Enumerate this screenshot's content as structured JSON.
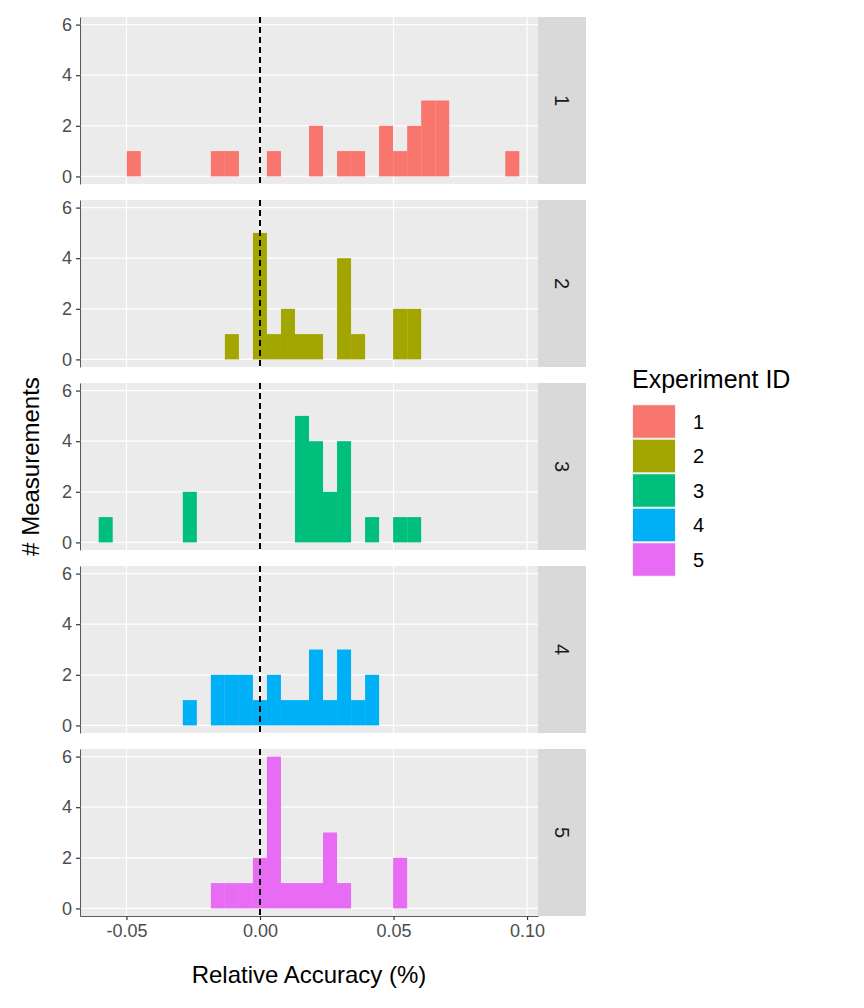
{
  "chart_data": {
    "type": "histogram",
    "x_label": "Relative Accuracy (%)",
    "y_label": "# Measurements",
    "legend_title": "Experiment ID",
    "legend": "right",
    "grid": true,
    "bins": [
      -0.0604,
      -0.05515,
      -0.0499,
      -0.04465,
      -0.0394,
      -0.03415,
      -0.0289,
      -0.02365,
      -0.0184,
      -0.01315,
      -0.0079,
      -0.00265,
      0.0026,
      0.00785,
      0.0131,
      0.01835,
      0.0236,
      0.02885,
      0.0341,
      0.03935,
      0.0446,
      0.04985,
      0.0551,
      0.06035,
      0.0656,
      0.07085,
      0.0761,
      0.08135,
      0.0866,
      0.09185,
      0.0971
    ],
    "series": [
      {
        "name": "1",
        "color": "#F8766D",
        "values": [
          0,
          0,
          1,
          0,
          0,
          0,
          0,
          0,
          1,
          1,
          0,
          0,
          1,
          0,
          0,
          2,
          0,
          1,
          1,
          0,
          2,
          1,
          2,
          3,
          3,
          0,
          0,
          0,
          0,
          1
        ]
      },
      {
        "name": "2",
        "color": "#A3A500",
        "values": [
          0,
          0,
          0,
          0,
          0,
          0,
          0,
          0,
          0,
          1,
          0,
          5,
          1,
          2,
          1,
          1,
          0,
          4,
          1,
          0,
          0,
          2,
          2,
          0,
          0,
          0,
          0,
          0,
          0,
          0
        ]
      },
      {
        "name": "3",
        "color": "#00BF7D",
        "values": [
          1,
          0,
          0,
          0,
          0,
          0,
          2,
          0,
          0,
          0,
          0,
          0,
          0,
          0,
          5,
          4,
          2,
          4,
          0,
          1,
          0,
          1,
          1,
          0,
          0,
          0,
          0,
          0,
          0,
          0
        ]
      },
      {
        "name": "4",
        "color": "#00B0F6",
        "values": [
          0,
          0,
          0,
          0,
          0,
          0,
          1,
          0,
          2,
          2,
          2,
          1,
          2,
          1,
          1,
          3,
          1,
          3,
          1,
          2,
          0,
          0,
          0,
          0,
          0,
          0,
          0,
          0,
          0,
          0
        ]
      },
      {
        "name": "5",
        "color": "#E76BF3",
        "values": [
          0,
          0,
          0,
          0,
          0,
          0,
          0,
          0,
          1,
          1,
          1,
          2,
          6,
          1,
          1,
          1,
          3,
          1,
          0,
          0,
          0,
          2,
          0,
          0,
          0,
          0,
          0,
          0,
          0,
          0
        ]
      }
    ],
    "reference_line": {
      "x": 0,
      "line_style": "dashed"
    },
    "xlim": [
      -0.0674,
      0.1041
    ],
    "ylim": [
      -0.3,
      6.3
    ],
    "xticks": [
      -0.05,
      {
        "value": 0,
        "label": "0.00"
      },
      0.05,
      {
        "value": 0.1,
        "label": "0.10"
      }
    ],
    "yticks": [
      0,
      2,
      4,
      6
    ]
  }
}
